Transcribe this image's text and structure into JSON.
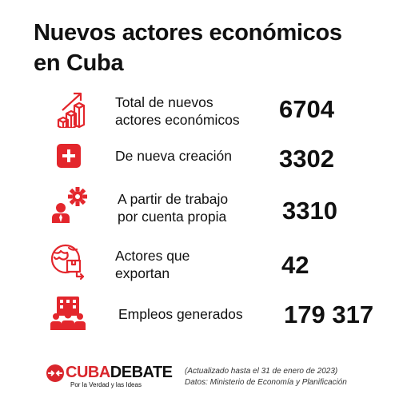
{
  "title": {
    "line1": "Nuevos actores económicos",
    "line2": "en Cuba"
  },
  "items": [
    {
      "label1": "Total de nuevos",
      "label2": "actores económicos",
      "value": "6704",
      "icon": "growth-bars-icon"
    },
    {
      "label1": "De nueva creación",
      "label2": "",
      "value": "3302",
      "icon": "plus-icon"
    },
    {
      "label1": "A partir de trabajo",
      "label2": "por cuenta propia",
      "value": "3310",
      "icon": "worker-gear-icon"
    },
    {
      "label1": "Actores que",
      "label2": "exportan",
      "value": "42",
      "icon": "globe-export-icon"
    },
    {
      "label1": "Empleos generados",
      "label2": "",
      "value": "179 317",
      "icon": "people-building-icon"
    }
  ],
  "footer": {
    "brand_cuba": "CUBA",
    "brand_debate": "DEBATE",
    "tagline": "Por la Verdad y las Ideas",
    "note1": "(Actualizado hasta el 31 de enero de 2023)",
    "note2": "Datos: Ministerio de Economía y Planificación"
  },
  "colors": {
    "accent": "#e3262c",
    "text": "#111111"
  }
}
